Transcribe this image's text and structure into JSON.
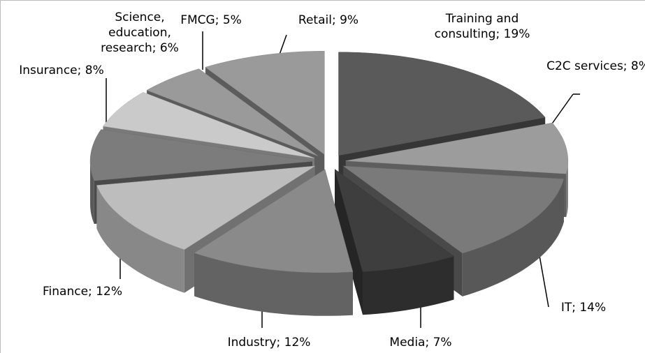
{
  "chart_data": {
    "type": "pie3d",
    "values": [
      19,
      8,
      14,
      7,
      12,
      12,
      8,
      6,
      5,
      9
    ],
    "value_labels": [
      "Training and consulting; 19%",
      "C2C services; 8%",
      "IT; 14%",
      "Media; 7%",
      "Industry; 12%",
      "Finance; 12%",
      "Insurance; 8%",
      "Science, education, research; 6%",
      "FMCG; 5%",
      "Retail; 9%"
    ],
    "colors": [
      "#5a5a5a",
      "#9c9c9c",
      "#7a7a7a",
      "#3e3e3e",
      "#8a8a8a",
      "#bdbdbd",
      "#7c7c7c",
      "#cacaca",
      "#9a9a9a",
      "#9a9a9a"
    ]
  }
}
